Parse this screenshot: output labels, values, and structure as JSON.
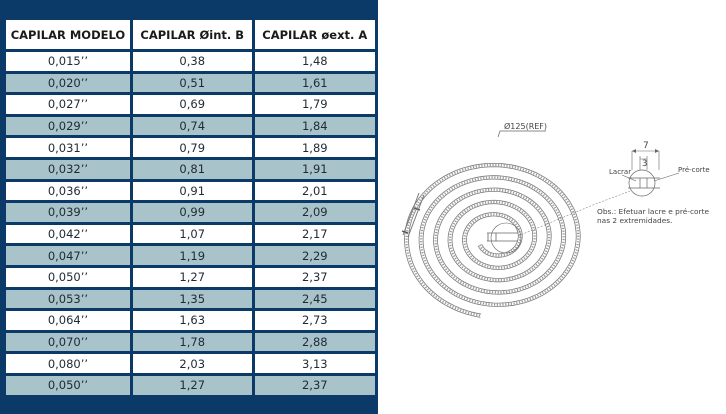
{
  "table": {
    "headers": [
      "CAPILAR MODELO",
      "CAPILAR Øint. B",
      "CAPILAR øext. A"
    ],
    "rows": [
      [
        "0,015’’",
        "0,38",
        "1,48"
      ],
      [
        "0,020’’",
        "0,51",
        "1,61"
      ],
      [
        "0,027’’",
        "0,69",
        "1,79"
      ],
      [
        "0,029’’",
        "0,74",
        "1,84"
      ],
      [
        "0,031’’",
        "0,79",
        "1,89"
      ],
      [
        "0,032’’",
        "0,81",
        "1,91"
      ],
      [
        "0,036’’",
        "0,91",
        "2,01"
      ],
      [
        "0,039’’",
        "0,99",
        "2,09"
      ],
      [
        "0,042’’",
        "1,07",
        "2,17"
      ],
      [
        "0,047’’",
        "1,19",
        "2,29"
      ],
      [
        "0,050’’",
        "1,27",
        "2,37"
      ],
      [
        "0,053’’",
        "1,35",
        "2,45"
      ],
      [
        "0,064’’",
        "1,63",
        "2,73"
      ],
      [
        "0,070’’",
        "1,78",
        "2,88"
      ],
      [
        "0,080’’",
        "2,03",
        "3,13"
      ],
      [
        "0,050’’",
        "1,27",
        "2,37"
      ]
    ]
  },
  "drawing": {
    "diameter_label": "Ø125(REF)",
    "dim_total": "7",
    "dim_lacre": "3",
    "label_lacrar": "Lacrar",
    "label_pre_corte": "Pré-corte",
    "obs_line1": "Obs.: Efetuar lacre e pré-corte",
    "obs_line2": "nas 2 extremidades."
  }
}
